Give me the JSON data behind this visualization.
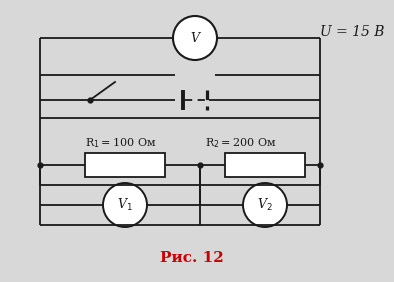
{
  "bg_color": "#d8d8d8",
  "title": "Рис. 12",
  "title_color": "#cc0000",
  "title_fontsize": 11,
  "U_label": "U = 15 В",
  "R1_label": "R$_1$ = 100 Ом",
  "R2_label": "R$_2$ = 200 Ом",
  "V_label": "V",
  "V1_label": "V$_1$",
  "V2_label": "V$_2$",
  "line_color": "#1a1a1a",
  "line_width": 1.3
}
